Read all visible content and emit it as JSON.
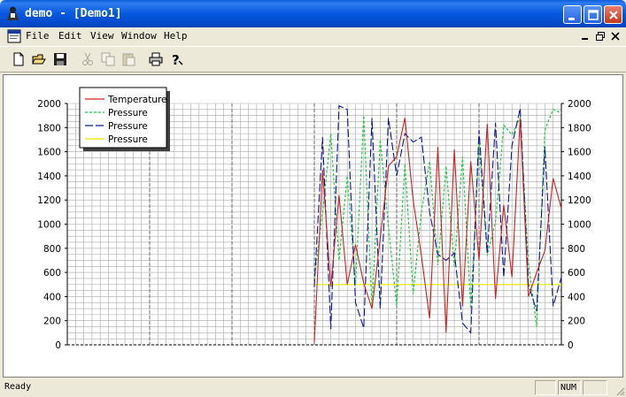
{
  "window": {
    "title": "demo - [Demo1]"
  },
  "menu": {
    "items": [
      "File",
      "Edit",
      "View",
      "Window",
      "Help"
    ]
  },
  "status": {
    "text": "Ready",
    "num": "NUM"
  },
  "colors": {
    "titlebar": "#0558e0",
    "temperature": "#d02020",
    "pressure_dashed": "#22cc44",
    "pressure_blue": "#0a1a9a",
    "pressure_yellow": "#e8e800",
    "grid": "#aaaaaa"
  },
  "icons": {
    "toolbar": [
      "new-icon",
      "open-icon",
      "save-icon",
      "cut-icon",
      "copy-icon",
      "paste-icon",
      "print-icon",
      "help-icon"
    ]
  },
  "chart_data": {
    "type": "line",
    "ylim": [
      0,
      2000
    ],
    "yticks": [
      0,
      200,
      400,
      600,
      800,
      1000,
      1200,
      1400,
      1600,
      1800,
      2000
    ],
    "xlim": [
      0,
      60
    ],
    "legend_position": "top-left",
    "series": [
      {
        "name": "Temperature",
        "style": "solid",
        "x": [
          30,
          31,
          32,
          33,
          34,
          35,
          36,
          37,
          38,
          39,
          40,
          41,
          42,
          43,
          44,
          45,
          46,
          47,
          48,
          49,
          50,
          51,
          52,
          53,
          54,
          55,
          56,
          57,
          58,
          59,
          60
        ],
        "values": [
          20,
          1450,
          480,
          1240,
          500,
          830,
          510,
          300,
          880,
          1480,
          1560,
          1880,
          1200,
          740,
          220,
          1640,
          100,
          1620,
          320,
          1520,
          700,
          1830,
          380,
          1160,
          560,
          1880,
          400,
          600,
          780,
          1380,
          1130
        ]
      },
      {
        "name": "Pressure",
        "style": "dashed",
        "x": [
          30,
          31,
          32,
          33,
          34,
          35,
          36,
          37,
          38,
          39,
          40,
          41,
          42,
          43,
          44,
          45,
          46,
          47,
          48,
          49,
          50,
          51,
          52,
          53,
          54,
          55,
          56,
          57,
          58,
          59,
          60
        ],
        "values": [
          550,
          1100,
          1750,
          700,
          1400,
          500,
          1900,
          300,
          1700,
          980,
          320,
          1500,
          420,
          1100,
          1520,
          660,
          1480,
          650,
          1560,
          300,
          1680,
          740,
          1020,
          1820,
          1740,
          1880,
          680,
          150,
          1780,
          1950,
          1920
        ]
      },
      {
        "name": "Pressure",
        "style": "solid",
        "x": [
          30,
          31,
          32,
          33,
          34,
          35,
          36,
          37,
          38,
          39,
          40,
          41,
          42,
          43,
          44,
          45,
          46,
          47,
          48,
          49,
          50,
          51,
          52,
          53,
          54,
          55,
          56,
          57,
          58,
          59,
          60
        ],
        "values": [
          480,
          1720,
          130,
          1980,
          1950,
          350,
          140,
          1880,
          300,
          1880,
          1400,
          1750,
          1680,
          1720,
          1100,
          750,
          700,
          760,
          180,
          100,
          1780,
          760,
          1840,
          560,
          1650,
          1960,
          500,
          280,
          1640,
          320,
          560
        ]
      },
      {
        "name": "Pressure",
        "style": "solid",
        "x": [
          30,
          60
        ],
        "values": [
          500,
          500
        ]
      }
    ]
  }
}
